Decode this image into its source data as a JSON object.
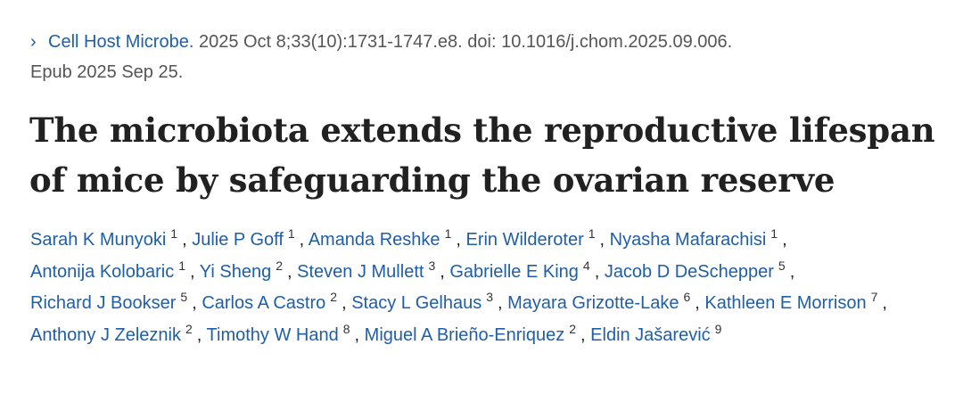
{
  "citation": {
    "chevron": "›",
    "journal": "Cell Host Microbe.",
    "details": " 2025 Oct 8;33(10):1731-1747.e8. doi: 10.1016/j.chom.2025.09.006.",
    "epub": "Epub 2025 Sep 25."
  },
  "title": "The microbiota extends the reproductive lifespan of mice by safeguarding the ovarian reserve",
  "authors": [
    {
      "name": "Sarah K Munyoki",
      "aff": "1"
    },
    {
      "name": "Julie P Goff",
      "aff": "1"
    },
    {
      "name": "Amanda Reshke",
      "aff": "1"
    },
    {
      "name": "Erin Wilderoter",
      "aff": "1"
    },
    {
      "name": "Nyasha Mafarachisi",
      "aff": "1"
    },
    {
      "name": "Antonija Kolobaric",
      "aff": "1"
    },
    {
      "name": "Yi Sheng",
      "aff": "2"
    },
    {
      "name": "Steven J Mullett",
      "aff": "3"
    },
    {
      "name": "Gabrielle E King",
      "aff": "4"
    },
    {
      "name": "Jacob D DeSchepper",
      "aff": "5"
    },
    {
      "name": "Richard J Bookser",
      "aff": "5"
    },
    {
      "name": "Carlos A Castro",
      "aff": "2"
    },
    {
      "name": "Stacy L Gelhaus",
      "aff": "3"
    },
    {
      "name": "Mayara Grizotte-Lake",
      "aff": "6"
    },
    {
      "name": "Kathleen E Morrison",
      "aff": "7"
    },
    {
      "name": "Anthony J Zeleznik",
      "aff": "2"
    },
    {
      "name": "Timothy W Hand",
      "aff": "8"
    },
    {
      "name": "Miguel A Brieño-Enriquez",
      "aff": "2"
    },
    {
      "name": "Eldin Jašarević",
      "aff": "9"
    }
  ]
}
